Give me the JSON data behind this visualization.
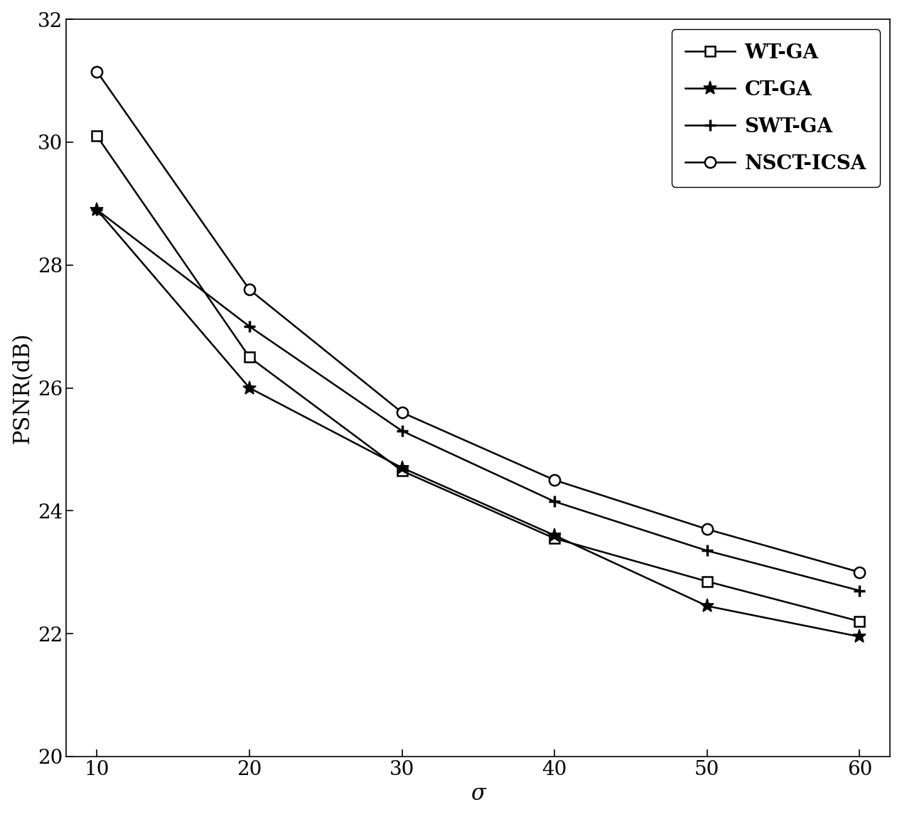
{
  "x": [
    10,
    20,
    30,
    40,
    50,
    60
  ],
  "WT_GA": [
    30.1,
    26.5,
    24.65,
    23.55,
    22.85,
    22.2
  ],
  "CT_GA": [
    28.9,
    26.0,
    24.7,
    23.6,
    22.45,
    21.95
  ],
  "SWT_GA": [
    28.9,
    27.0,
    25.3,
    24.15,
    23.35,
    22.7
  ],
  "NSCT_ICSA": [
    31.15,
    27.6,
    25.6,
    24.5,
    23.7,
    23.0
  ],
  "xlabel": "σ",
  "ylabel": "PSNR(dB)",
  "xlim": [
    8,
    62
  ],
  "ylim": [
    20,
    32
  ],
  "xticks": [
    10,
    20,
    30,
    40,
    50,
    60
  ],
  "yticks": [
    20,
    22,
    24,
    26,
    28,
    30,
    32
  ],
  "legend_labels": [
    "WT-GA",
    "CT-GA",
    "SWT-GA",
    "NSCT-ICSA"
  ],
  "line_color": "#000000",
  "bg_color": "#ffffff",
  "fontsize_label": 22,
  "fontsize_tick": 20,
  "fontsize_legend": 20
}
